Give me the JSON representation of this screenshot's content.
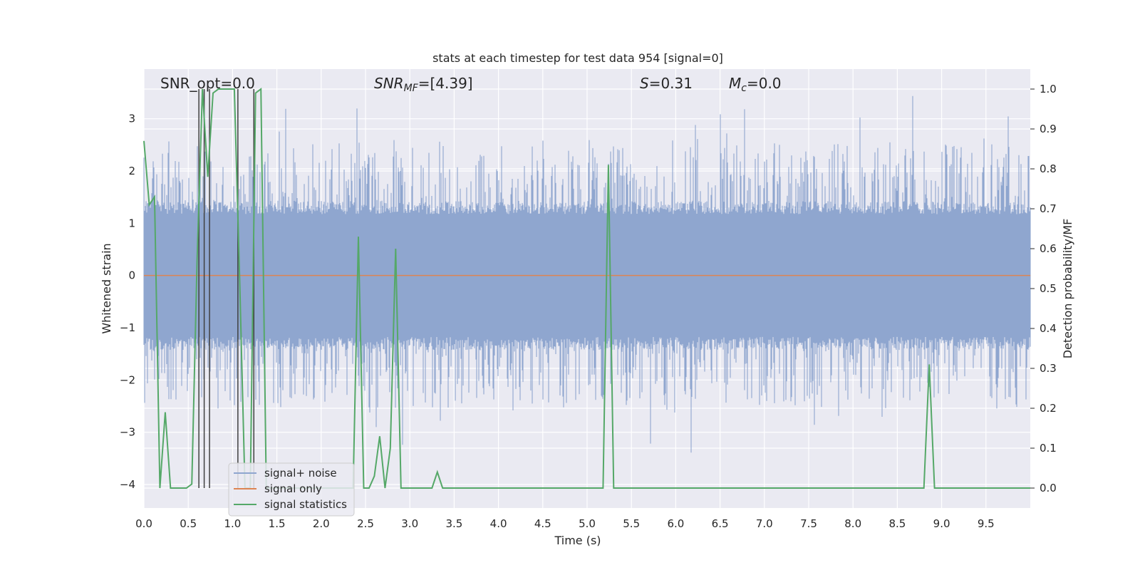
{
  "chart_data": {
    "type": "line",
    "title": "stats at each timestep for test data 954 [signal=0]",
    "xlabel": "Time (s)",
    "ylabel": "Whitened strain",
    "y2label": "Detection probability/MF",
    "xlim": [
      0.0,
      10.0
    ],
    "ylim": [
      -4.45,
      3.95
    ],
    "y2lim": [
      -0.05,
      1.05
    ],
    "x_ticks": [
      0.0,
      0.5,
      1.0,
      1.5,
      2.0,
      2.5,
      3.0,
      3.5,
      4.0,
      4.5,
      5.0,
      5.5,
      6.0,
      6.5,
      7.0,
      7.5,
      8.0,
      8.5,
      9.0,
      9.5
    ],
    "x_tick_labels": [
      "0.0",
      "0.5",
      "1.0",
      "1.5",
      "2.0",
      "2.5",
      "3.0",
      "3.5",
      "4.0",
      "4.5",
      "5.0",
      "5.5",
      "6.0",
      "6.5",
      "7.0",
      "7.5",
      "8.0",
      "8.5",
      "9.0",
      "9.5"
    ],
    "y_ticks": [
      -4,
      -3,
      -2,
      -1,
      0,
      1,
      2,
      3
    ],
    "y_tick_labels": [
      "−4",
      "−3",
      "−2",
      "−1",
      "0",
      "1",
      "2",
      "3"
    ],
    "y2_ticks": [
      0.0,
      0.1,
      0.2,
      0.3,
      0.4,
      0.5,
      0.6,
      0.7,
      0.8,
      0.9,
      1.0
    ],
    "y2_tick_labels": [
      "0.0",
      "0.1",
      "0.2",
      "0.3",
      "0.4",
      "0.5",
      "0.6",
      "0.7",
      "0.8",
      "0.9",
      "1.0"
    ],
    "grid": true,
    "legend": {
      "placement": "lower-left",
      "entries": [
        {
          "label": "signal+ noise",
          "color": "#8fa6cf"
        },
        {
          "label": "signal only",
          "color": "#dd8452"
        },
        {
          "label": "signal statistics",
          "color": "#55a868"
        }
      ]
    },
    "annotations": {
      "snr_opt": "SNR_opt=0.0",
      "snr_mf_main": "SNR",
      "snr_mf_sub": "MF",
      "snr_mf_rest": "=[4.39]",
      "s_main": "S",
      "s_rest": "=0.31",
      "mc_main": "M",
      "mc_sub": "c",
      "mc_rest": "=0.0"
    },
    "noise_series": {
      "name": "signal+ noise",
      "color": "#8fa6cf",
      "description_level": "whitened noise amplitude approx ±1.3 dense band with spikes up to about ±3.5",
      "core_amplitude": 1.3,
      "spike_max": 3.6
    },
    "signal_only": {
      "name": "signal only",
      "color": "#dd8452",
      "value": 0.0
    },
    "stats_series": {
      "name": "signal statistics",
      "color": "#55a868",
      "x": [
        0.0,
        0.06,
        0.12,
        0.18,
        0.24,
        0.3,
        0.36,
        0.42,
        0.48,
        0.54,
        0.6,
        0.66,
        0.72,
        0.78,
        0.84,
        0.9,
        0.96,
        1.02,
        1.08,
        1.14,
        1.2,
        1.26,
        1.32,
        1.38,
        1.44,
        1.5,
        2.3,
        2.36,
        2.42,
        2.48,
        2.54,
        2.6,
        2.66,
        2.72,
        2.78,
        2.84,
        2.9,
        2.96,
        3.02,
        3.25,
        3.31,
        3.37,
        3.5,
        5.18,
        5.24,
        5.3,
        5.36,
        8.8,
        8.86,
        8.92,
        8.98,
        10.0
      ],
      "y": [
        0.87,
        0.71,
        0.73,
        0.0,
        0.19,
        0.0,
        0.0,
        0.0,
        0.0,
        0.01,
        0.57,
        1.0,
        0.78,
        0.99,
        1.0,
        1.0,
        1.0,
        1.0,
        0.52,
        0.0,
        0.0,
        0.99,
        1.0,
        0.0,
        0.0,
        0.0,
        0.0,
        0.0,
        0.63,
        0.0,
        0.0,
        0.03,
        0.13,
        0.0,
        0.1,
        0.6,
        0.0,
        0.0,
        0.0,
        0.0,
        0.04,
        0.0,
        0.0,
        0.0,
        0.81,
        0.0,
        0.0,
        0.0,
        0.31,
        0.0,
        0.0,
        0.0
      ]
    },
    "vertical_markers": {
      "color": "#404040",
      "x": [
        0.62,
        0.68,
        0.74,
        1.06,
        1.24
      ]
    }
  }
}
